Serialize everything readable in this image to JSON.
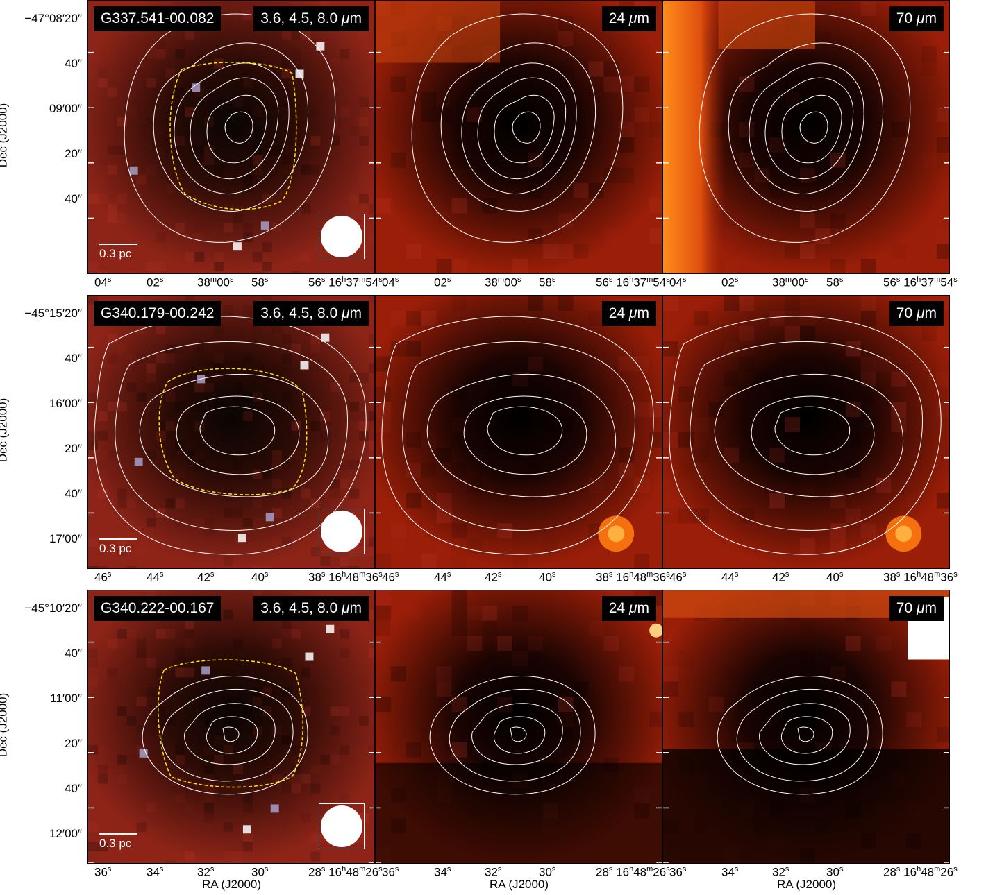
{
  "rows": [
    {
      "source": "G337.541-00.082",
      "bands": [
        "3.6, 4.5, 8.0 μm",
        "24 μm",
        "70 μm"
      ],
      "scale_bar": "0.3 pc",
      "dec_ticks": [
        "−47°08′20″",
        "40″",
        "09′00″",
        "20″",
        "40″"
      ],
      "ra_ticks": [
        "04s",
        "02s",
        "38m00s",
        "58s",
        "56s 16h37m54s"
      ]
    },
    {
      "source": "G340.179-00.242",
      "bands": [
        "3.6, 4.5, 8.0 μm",
        "24 μm",
        "70 μm"
      ],
      "scale_bar": "0.3 pc",
      "dec_ticks": [
        "−45°15′20″",
        "40″",
        "16′00″",
        "20″",
        "40″",
        "17′00″"
      ],
      "ra_ticks": [
        "46s",
        "44s",
        "42s",
        "40s",
        "38s 16h48m36s"
      ]
    },
    {
      "source": "G340.222-00.167",
      "bands": [
        "3.6, 4.5, 8.0 μm",
        "24 μm",
        "70 μm"
      ],
      "scale_bar": "0.3 pc",
      "dec_ticks": [
        "−45°10′20″",
        "40″",
        "11′00″",
        "20″",
        "40″",
        "12′00″"
      ],
      "ra_ticks": [
        "36s",
        "34s",
        "32s",
        "30s",
        "28s 16h48m26s"
      ]
    }
  ],
  "axes": {
    "ylabel": "Dec (J2000)",
    "xlabel": "RA (J2000)"
  },
  "colors": {
    "dust_red": "#8a1a0e",
    "bright": "#ff8c1a",
    "dark": "#000000",
    "contour": "#ffffff",
    "boundary": "#ffe600"
  }
}
